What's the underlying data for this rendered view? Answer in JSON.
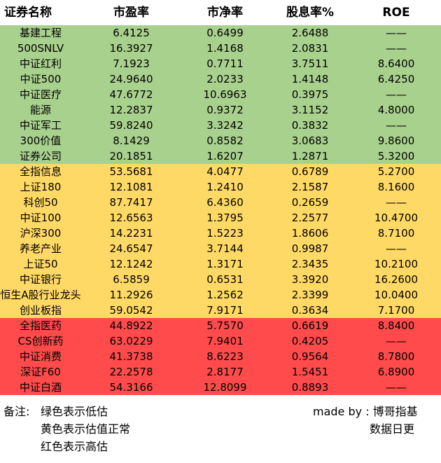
{
  "table": {
    "headers": [
      "证券名称",
      "市盈率",
      "市净率",
      "股息率%",
      "ROE"
    ],
    "rows": [
      {
        "cells": [
          "基建工程",
          "6.4125",
          "0.6499",
          "2.6488",
          "——"
        ],
        "band": "green"
      },
      {
        "cells": [
          "500SNLV",
          "16.3927",
          "1.4168",
          "2.0831",
          "——"
        ],
        "band": "green"
      },
      {
        "cells": [
          "中证红利",
          "7.1923",
          "0.7711",
          "3.7511",
          "8.6400"
        ],
        "band": "green"
      },
      {
        "cells": [
          "中证500",
          "24.9640",
          "2.0233",
          "1.4148",
          "6.4250"
        ],
        "band": "green"
      },
      {
        "cells": [
          "中证医疗",
          "47.6772",
          "10.6963",
          "0.3975",
          "——"
        ],
        "band": "green"
      },
      {
        "cells": [
          "能源",
          "12.2837",
          "0.9372",
          "3.1152",
          "4.8000"
        ],
        "band": "green"
      },
      {
        "cells": [
          "中证军工",
          "59.8240",
          "3.3242",
          "0.3832",
          "——"
        ],
        "band": "green"
      },
      {
        "cells": [
          "300价值",
          "8.1429",
          "0.8582",
          "3.0683",
          "9.8600"
        ],
        "band": "green"
      },
      {
        "cells": [
          "证券公司",
          "20.1851",
          "1.6207",
          "1.2871",
          "5.3200"
        ],
        "band": "green"
      },
      {
        "cells": [
          "全指信息",
          "53.5681",
          "4.0477",
          "0.6789",
          "5.2700"
        ],
        "band": "yellow"
      },
      {
        "cells": [
          "上证180",
          "12.1081",
          "1.2410",
          "2.1587",
          "8.1600"
        ],
        "band": "yellow"
      },
      {
        "cells": [
          "科创50",
          "87.7417",
          "6.4360",
          "0.2659",
          "——"
        ],
        "band": "yellow"
      },
      {
        "cells": [
          "中证100",
          "12.6563",
          "1.3795",
          "2.2577",
          "10.4700"
        ],
        "band": "yellow"
      },
      {
        "cells": [
          "沪深300",
          "14.2231",
          "1.5223",
          "1.8606",
          "8.7100"
        ],
        "band": "yellow"
      },
      {
        "cells": [
          "养老产业",
          "24.6547",
          "3.7144",
          "0.9987",
          "——"
        ],
        "band": "yellow"
      },
      {
        "cells": [
          "上证50",
          "12.1242",
          "1.3171",
          "2.3435",
          "10.2100"
        ],
        "band": "yellow"
      },
      {
        "cells": [
          "中证银行",
          "6.5859",
          "0.6531",
          "3.3920",
          "16.2600"
        ],
        "band": "yellow"
      },
      {
        "cells": [
          "恒生A股行业龙头",
          "11.2926",
          "1.2562",
          "2.3399",
          "10.0400"
        ],
        "band": "yellow"
      },
      {
        "cells": [
          "创业板指",
          "59.0542",
          "7.9171",
          "0.3634",
          "7.1700"
        ],
        "band": "yellow"
      },
      {
        "cells": [
          "全指医药",
          "44.8922",
          "5.7570",
          "0.6619",
          "8.8400"
        ],
        "band": "red"
      },
      {
        "cells": [
          "CS创新药",
          "63.0229",
          "7.9401",
          "0.4205",
          "——"
        ],
        "band": "red"
      },
      {
        "cells": [
          "中证消费",
          "41.3738",
          "8.6223",
          "0.9564",
          "8.7800"
        ],
        "band": "red"
      },
      {
        "cells": [
          "深证F60",
          "22.2578",
          "2.8177",
          "1.5451",
          "6.8900"
        ],
        "band": "red"
      },
      {
        "cells": [
          "中证白酒",
          "54.3166",
          "12.8099",
          "0.8893",
          "——"
        ],
        "band": "red"
      }
    ]
  },
  "band_colors": {
    "green": "#a9d18e",
    "yellow": "#ffd966",
    "red": "#ff4b4b"
  },
  "notes": {
    "label": "备注:",
    "lines": [
      "绿色表示低估",
      "黄色表示估值正常",
      "红色表示高估"
    ],
    "credit": "made by : 博哥指基",
    "update": "数据日更"
  }
}
